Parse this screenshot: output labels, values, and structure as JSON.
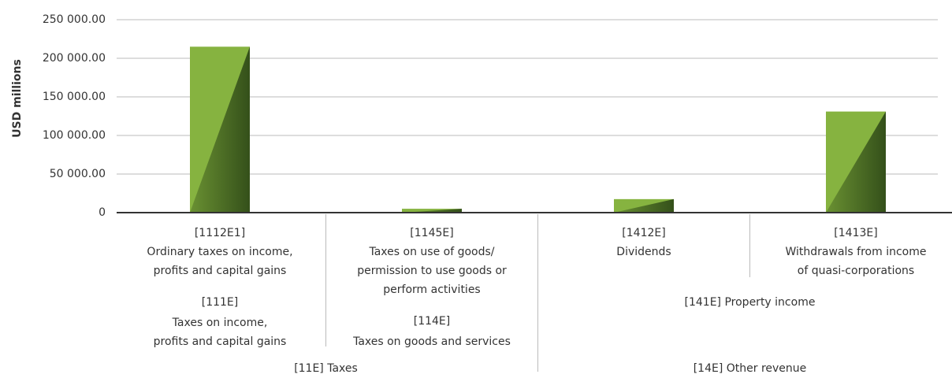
{
  "chart_data": {
    "type": "bar",
    "y_label": "USD millions",
    "categories": [
      {
        "code": "[1112E1]",
        "lines": [
          "Ordinary taxes on income,",
          "profits and capital gains"
        ]
      },
      {
        "code": "[1145E]",
        "lines": [
          "Taxes on use of goods/",
          "permission to use goods or",
          "perform activities"
        ]
      },
      {
        "code": "[1412E]",
        "lines": [
          "Dividends"
        ]
      },
      {
        "code": "[1413E]",
        "lines": [
          "Withdrawals from income",
          "of quasi-corporations"
        ]
      }
    ],
    "groups": [
      {
        "code": "[111E]",
        "lines": [
          "Taxes on income,",
          "profits and capital gains"
        ],
        "span": [
          0,
          0
        ]
      },
      {
        "code": "[114E]",
        "lines": [
          "Taxes on goods and services"
        ],
        "span": [
          1,
          1
        ]
      },
      {
        "lines": [
          "[141E] Property income"
        ],
        "span": [
          2,
          3
        ]
      }
    ],
    "supergroups": [
      {
        "label": "[11E] Taxes",
        "span": [
          0,
          1
        ]
      },
      {
        "label": "[14E] Other revenue",
        "span": [
          2,
          3
        ]
      }
    ],
    "values": [
      215000,
      5000,
      17500,
      131000
    ],
    "color": "#86b340",
    "shade_color": "#3b561c",
    "ylim": [
      0,
      250000
    ],
    "yticks": [
      0,
      {
        "value": 50000,
        "label": "50 000.00"
      },
      {
        "value": 100000,
        "label": "100 000.00"
      },
      {
        "value": 150000,
        "label": "150 000.00"
      },
      {
        "value": 200000,
        "label": "200 000.00"
      },
      {
        "value": 250000,
        "label": "250 000.00"
      }
    ],
    "grid": true
  }
}
